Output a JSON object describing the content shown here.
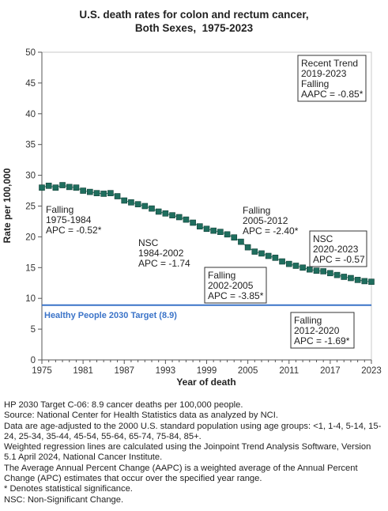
{
  "chart_data": {
    "type": "line",
    "title": "U.S. death rates for colon and rectum cancer,",
    "subtitle": "Both Sexes,  1975-2023",
    "xlabel": "Year of death",
    "ylabel": "Rate per 100,000",
    "xlim": [
      1975,
      2023
    ],
    "ylim": [
      0,
      50
    ],
    "x_ticks": [
      1975,
      1981,
      1987,
      1993,
      1999,
      2005,
      2011,
      2017,
      2023
    ],
    "y_ticks": [
      0,
      5,
      10,
      15,
      20,
      25,
      30,
      35,
      40,
      45,
      50
    ],
    "grid": false,
    "series": [
      {
        "marker": "square",
        "color": "#1f6e5e",
        "x": [
          1975,
          1976,
          1977,
          1978,
          1979,
          1980,
          1981,
          1982,
          1983,
          1984,
          1985,
          1986,
          1987,
          1988,
          1989,
          1990,
          1991,
          1992,
          1993,
          1994,
          1995,
          1996,
          1997,
          1998,
          1999,
          2000,
          2001,
          2002,
          2003,
          2004,
          2005,
          2006,
          2007,
          2008,
          2009,
          2010,
          2011,
          2012,
          2013,
          2014,
          2015,
          2016,
          2017,
          2018,
          2019,
          2020,
          2021,
          2022,
          2023
        ],
        "values": [
          28.0,
          28.3,
          28.0,
          28.4,
          28.1,
          28.0,
          27.5,
          27.3,
          27.1,
          27.0,
          27.1,
          26.6,
          25.9,
          25.6,
          25.3,
          25.0,
          24.6,
          24.1,
          23.8,
          23.5,
          23.2,
          22.8,
          22.3,
          21.7,
          21.3,
          21.0,
          20.8,
          20.4,
          19.9,
          19.2,
          18.3,
          17.6,
          17.3,
          16.9,
          16.6,
          16.0,
          15.6,
          15.3,
          15.0,
          14.7,
          14.5,
          14.4,
          14.1,
          13.8,
          13.5,
          13.3,
          13.0,
          12.8,
          12.7
        ]
      }
    ],
    "target_line": {
      "value": 8.9,
      "label": "Healthy People 2030 Target (8.9)",
      "color": "#3a73c8"
    },
    "annotations": [
      {
        "lines": [
          "Falling",
          "1975-1984",
          "APC = -0.52*"
        ],
        "framed": false
      },
      {
        "lines": [
          "NSC",
          "1984-2002",
          "APC = -1.74"
        ],
        "framed": false
      },
      {
        "lines": [
          "Falling",
          "2002-2005",
          "APC = -3.85*"
        ],
        "framed": true
      },
      {
        "lines": [
          "Falling",
          "2005-2012",
          "APC = -2.40*"
        ],
        "framed": false
      },
      {
        "lines": [
          "Falling",
          "2012-2020",
          "APC = -1.69*"
        ],
        "framed": true
      },
      {
        "lines": [
          "NSC",
          "2020-2023",
          "APC = -0.57"
        ],
        "framed": true
      },
      {
        "lines": [
          "Recent Trend",
          "2019-2023",
          "Falling",
          "AAPC = -0.85*"
        ],
        "framed": true
      }
    ]
  },
  "notes": [
    "HP 2030 Target C-06: 8.9 cancer deaths per 100,000 people.",
    "Source: National Center for Health Statistics data as analyzed by NCI.",
    "Data are age-adjusted to the 2000 U.S. standard population using age groups: <1, 1-4, 5-14, 15-24, 25-34, 35-44, 45-54, 55-64, 65-74, 75-84, 85+.",
    "Weighted regression lines are calculated using the Joinpoint Trend Analysis Software, Version 5.1 April 2024, National Cancer Institute.",
    "The Average Annual Percent Change (AAPC) is a weighted average of the Annual Percent Change (APC) estimates that occur over the specified year range.",
    "* Denotes statistical significance.",
    "NSC: Non-Significant Change."
  ]
}
